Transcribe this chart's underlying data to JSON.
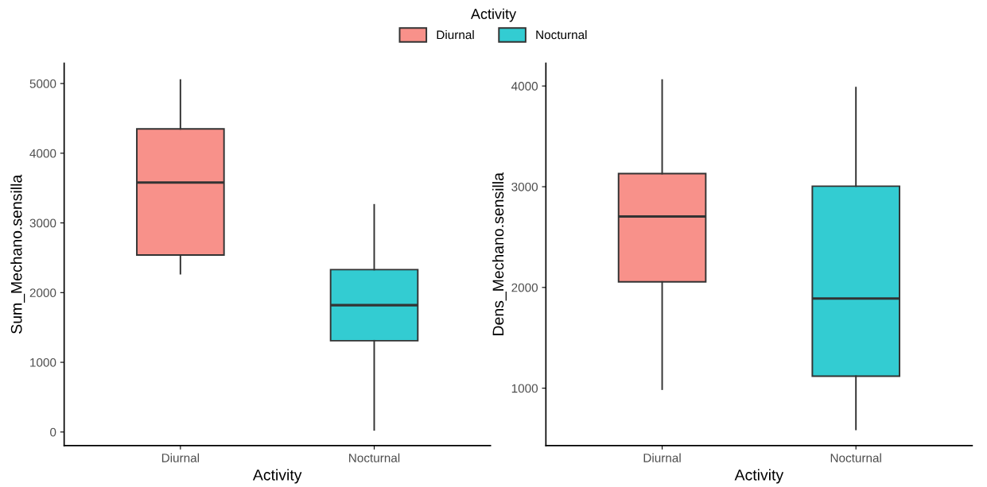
{
  "chart_data": [
    {
      "type": "box",
      "xlabel": "Activity",
      "ylabel": "Sum_Mechano.sensilla",
      "categories": [
        "Diurnal",
        "Nocturnal"
      ],
      "legend": "top",
      "legend_title": "Activity",
      "series": [
        {
          "name": "Diurnal",
          "color": "#f8918a",
          "boxes": [
            {
              "low": 2270,
              "q1": 2540,
              "median": 3580,
              "q3": 4350,
              "high": 5050
            },
            null
          ]
        },
        {
          "name": "Nocturnal",
          "color": "#33ccd2",
          "boxes": [
            null,
            {
              "low": 30,
              "q1": 1310,
              "median": 1820,
              "q3": 2330,
              "high": 3260
            }
          ]
        }
      ],
      "ylim": [
        -195,
        5290
      ],
      "yticks": [
        0,
        1000,
        2000,
        3000,
        4000,
        5000
      ],
      "grid": false
    },
    {
      "type": "box",
      "xlabel": "Activity",
      "ylabel": "Dens_Mechano.sensilla",
      "categories": [
        "Diurnal",
        "Nocturnal"
      ],
      "series": [
        {
          "color": "#f8918a",
          "boxes": [
            {
              "low": 990,
              "q1": 2055,
              "median": 2705,
              "q3": 3130,
              "high": 4060
            },
            null
          ]
        },
        {
          "color": "#33ccd2",
          "boxes": [
            null,
            {
              "low": 590,
              "q1": 1120,
              "median": 1890,
              "q3": 3005,
              "high": 3985
            }
          ]
        }
      ],
      "ylim": [
        430,
        4225
      ],
      "yticks": [
        1000,
        2000,
        3000,
        4000
      ],
      "grid": false
    }
  ]
}
